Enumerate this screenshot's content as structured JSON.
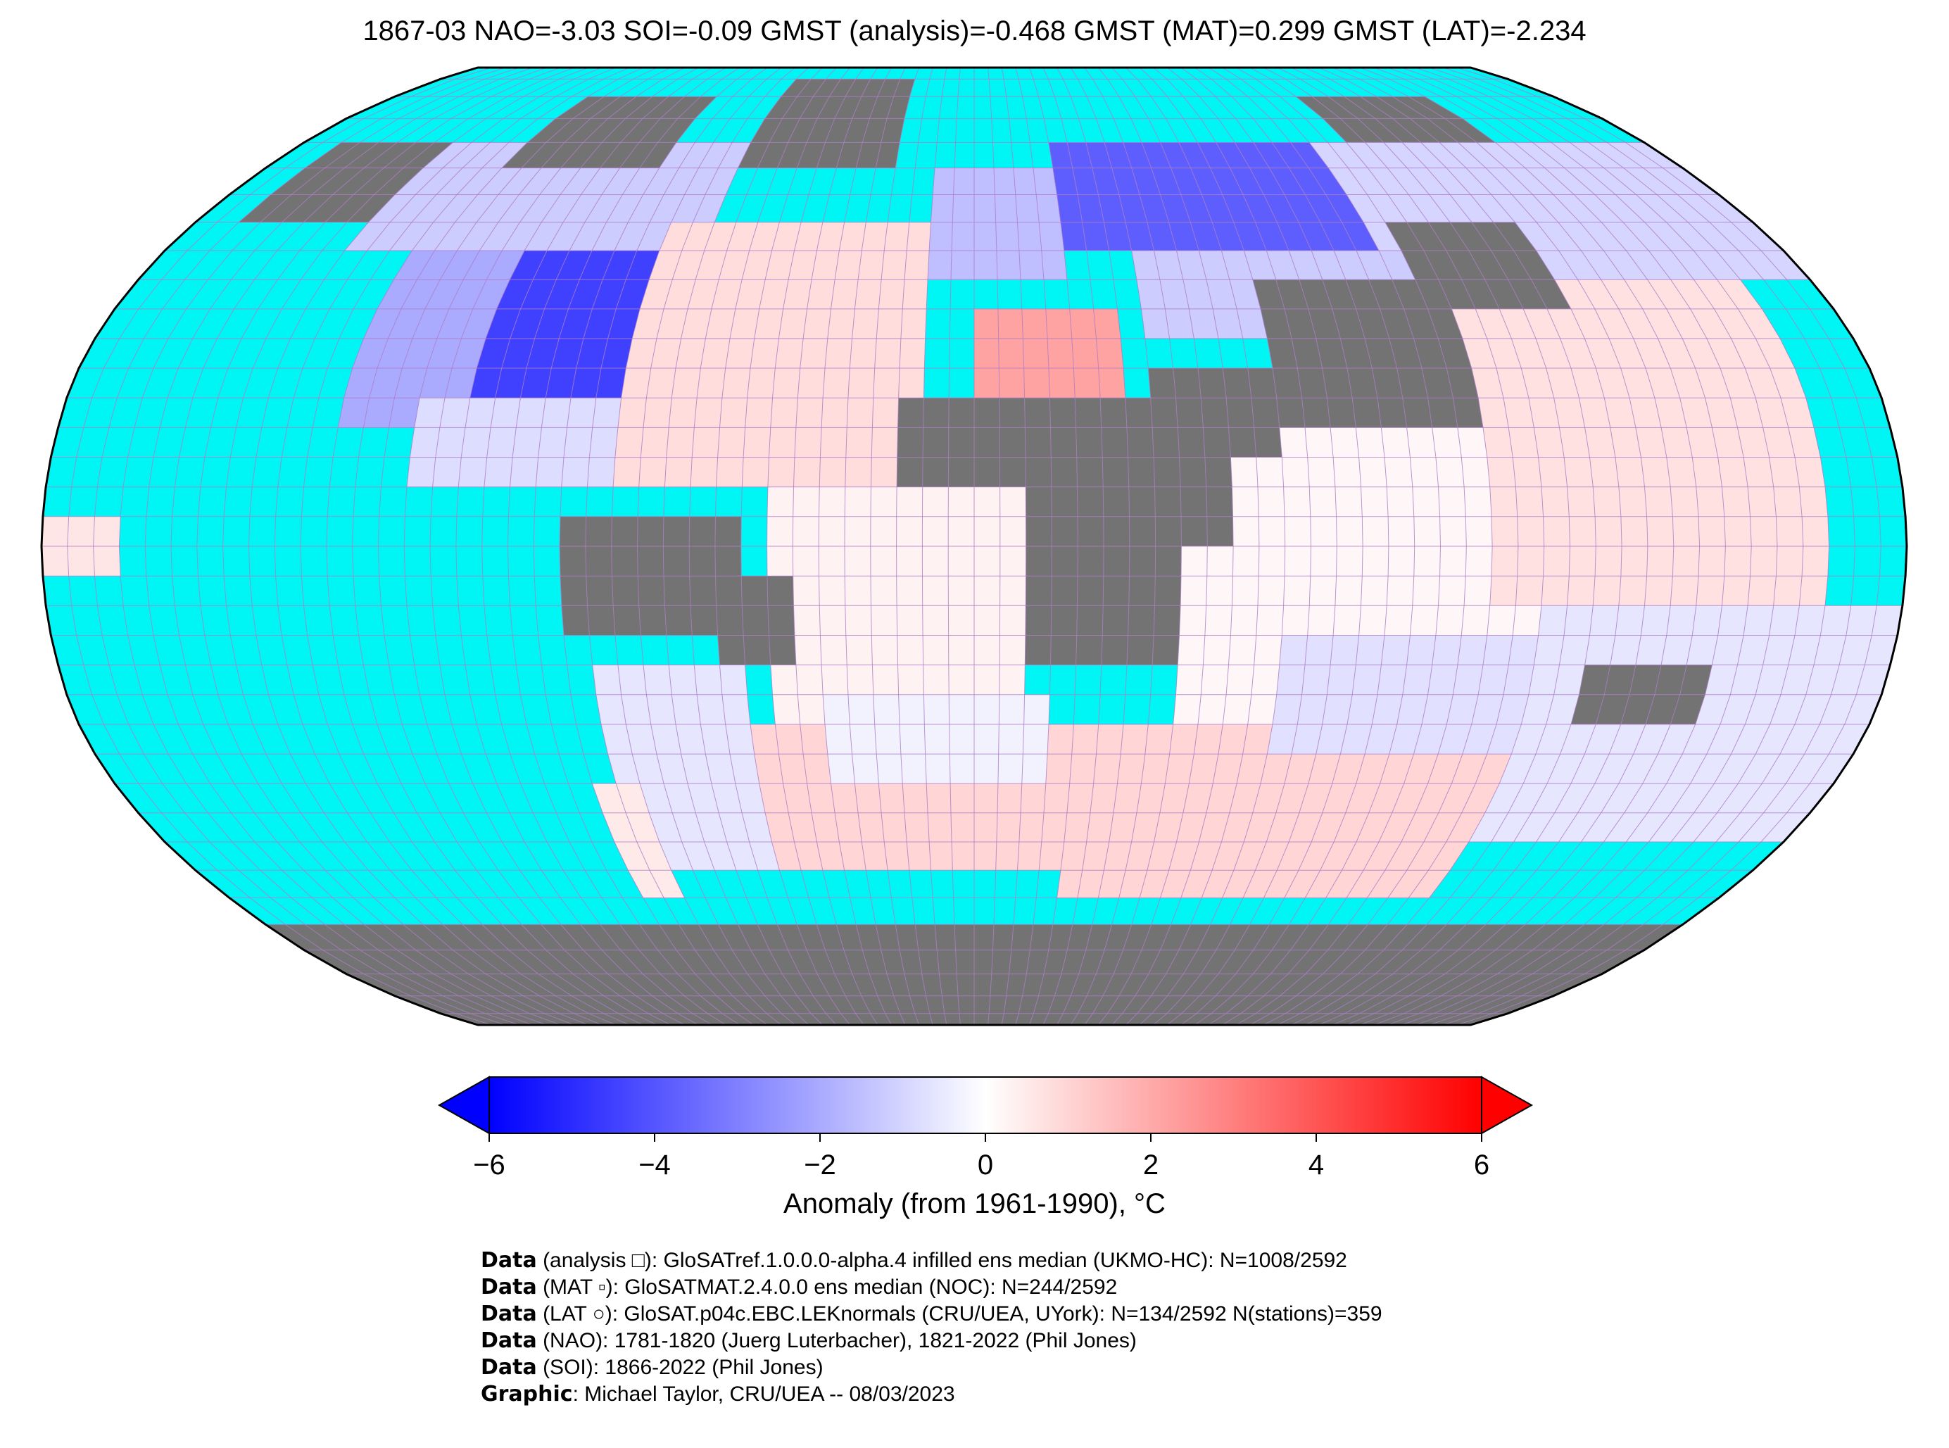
{
  "title": "1867-03 NAO=-3.03 SOI=-0.09 GMST (analysis)=-0.468 GMST (MAT)=0.299 GMST (LAT)=-2.234",
  "colors": {
    "ocean_missing": "#00f5f5",
    "land_missing": "#737373",
    "grid_line": "#b07cc6",
    "cold": "#0000ff",
    "neutral": "#ffffff",
    "warm": "#ff0000"
  },
  "colorbar": {
    "min": -6,
    "max": 6,
    "ticks": [
      "−6",
      "−4",
      "−2",
      "0",
      "2",
      "4",
      "6"
    ],
    "tick_values": [
      -6,
      -4,
      -2,
      0,
      2,
      4,
      6
    ],
    "extend": "both",
    "label": "Anomaly (from 1961-1990), °C"
  },
  "credits": [
    {
      "bold": "Data",
      "text": " (analysis □): GloSATref.1.0.0.0-alpha.4 infilled ens median (UKMO-HC): N=1008/2592"
    },
    {
      "bold": "Data",
      "text": " (MAT ▫): GloSATMAT.2.4.0.0 ens median (NOC): N=244/2592"
    },
    {
      "bold": "Data",
      "text": " (LAT ○): GloSAT.p04c.EBC.LEKnormals (CRU/UEA, UYork): N=134/2592 N(stations)=359"
    },
    {
      "bold": "Data",
      "text": " (NAO): 1781-1820 (Juerg Luterbacher), 1821-2022 (Phil Jones)"
    },
    {
      "bold": "Data",
      "text": " (SOI): 1866-2022 (Phil Jones)"
    },
    {
      "bold": "Graphic",
      "text": ": Michael Taylor, CRU/UEA -- 08/03/2023"
    }
  ],
  "map_data": {
    "projection": "Robinson",
    "grid_resolution_deg": 5,
    "anomaly_regions": [
      {
        "region": "north-america-interior",
        "lon": [
          -100,
          -65
        ],
        "lat": [
          25,
          50
        ],
        "anomaly": -4.5
      },
      {
        "region": "north-america-west",
        "lon": [
          -125,
          -100
        ],
        "lat": [
          20,
          55
        ],
        "anomaly": -2.0
      },
      {
        "region": "canada-north",
        "lon": [
          -140,
          -60
        ],
        "lat": [
          50,
          72
        ],
        "anomaly": -1.2
      },
      {
        "region": "gulf-caribbean",
        "lon": [
          -110,
          -60
        ],
        "lat": [
          10,
          25
        ],
        "anomaly": -0.8
      },
      {
        "region": "eurasia-north",
        "lon": [
          20,
          90
        ],
        "lat": [
          48,
          72
        ],
        "anomaly": -3.8
      },
      {
        "region": "europe-west",
        "lon": [
          -10,
          20
        ],
        "lat": [
          45,
          65
        ],
        "anomaly": -1.5
      },
      {
        "region": "siberia-east",
        "lon": [
          90,
          180
        ],
        "lat": [
          45,
          72
        ],
        "anomaly": -1.0
      },
      {
        "region": "central-asia",
        "lon": [
          35,
          110
        ],
        "lat": [
          35,
          48
        ],
        "anomaly": -1.2
      },
      {
        "region": "north-africa-med",
        "lon": [
          0,
          30
        ],
        "lat": [
          25,
          40
        ],
        "anomaly": 2.2
      },
      {
        "region": "north-atlantic",
        "lon": [
          -70,
          -10
        ],
        "lat": [
          10,
          55
        ],
        "anomaly": 0.8
      },
      {
        "region": "tropical-atlantic",
        "lon": [
          -40,
          10
        ],
        "lat": [
          -30,
          10
        ],
        "anomaly": 0.3
      },
      {
        "region": "south-atlantic",
        "lon": [
          -55,
          20
        ],
        "lat": [
          -55,
          -30
        ],
        "anomaly": 1.0
      },
      {
        "region": "south-atlantic-central",
        "lon": [
          -30,
          15
        ],
        "lat": [
          -40,
          -25
        ],
        "anomaly": -0.3
      },
      {
        "region": "indian-ocean-south",
        "lon": [
          20,
          110
        ],
        "lat": [
          -60,
          -30
        ],
        "anomaly": 1.0
      },
      {
        "region": "indian-ocean",
        "lon": [
          40,
          110
        ],
        "lat": [
          -30,
          25
        ],
        "anomaly": 0.2
      },
      {
        "region": "indian-ocean-sw",
        "lon": [
          60,
          110
        ],
        "lat": [
          -35,
          -15
        ],
        "anomaly": -0.7
      },
      {
        "region": "west-pacific",
        "lon": [
          100,
          165
        ],
        "lat": [
          -10,
          45
        ],
        "anomaly": 0.7
      },
      {
        "region": "southwest-pacific",
        "lon": [
          110,
          180
        ],
        "lat": [
          -50,
          -10
        ],
        "anomaly": -0.6
      },
      {
        "region": "south-america-south",
        "lon": [
          -75,
          -45
        ],
        "lat": [
          -55,
          -20
        ],
        "anomaly": -0.6
      },
      {
        "region": "patagonia-pacific",
        "lon": [
          -80,
          -70
        ],
        "lat": [
          -60,
          -40
        ],
        "anomaly": 0.5
      },
      {
        "region": "central-pacific-west",
        "lon": [
          -180,
          -165
        ],
        "lat": [
          -5,
          5
        ],
        "anomaly": 0.6
      }
    ],
    "land_missing_regions": [
      {
        "region": "alaska",
        "lon": [
          -170,
          -140
        ],
        "lat": [
          55,
          72
        ]
      },
      {
        "region": "greenland",
        "lon": [
          -60,
          -20
        ],
        "lat": [
          65,
          83
        ]
      },
      {
        "region": "canada-arctic",
        "lon": [
          -120,
          -80
        ],
        "lat": [
          65,
          80
        ]
      },
      {
        "region": "north-africa-sahara",
        "lon": [
          -15,
          40
        ],
        "lat": [
          10,
          25
        ]
      },
      {
        "region": "central-africa",
        "lon": [
          10,
          40
        ],
        "lat": [
          -20,
          10
        ]
      },
      {
        "region": "horn-of-africa",
        "lon": [
          30,
          50
        ],
        "lat": [
          0,
          15
        ]
      },
      {
        "region": "arabia",
        "lon": [
          35,
          60
        ],
        "lat": [
          15,
          30
        ]
      },
      {
        "region": "tibet-india-north",
        "lon": [
          60,
          100
        ],
        "lat": [
          20,
          45
        ]
      },
      {
        "region": "amazon",
        "lon": [
          -80,
          -45
        ],
        "lat": [
          -15,
          5
        ]
      },
      {
        "region": "brazil-northeast",
        "lon": [
          -50,
          -35
        ],
        "lat": [
          -20,
          -5
        ]
      },
      {
        "region": "australia-interior",
        "lon": [
          120,
          145
        ],
        "lat": [
          -30,
          -20
        ]
      },
      {
        "region": "mongolia",
        "lon": [
          95,
          125
        ],
        "lat": [
          40,
          55
        ]
      },
      {
        "region": "arctic-siberia",
        "lon": [
          100,
          140
        ],
        "lat": [
          72,
          80
        ]
      },
      {
        "region": "antarctica",
        "lon": [
          -180,
          180
        ],
        "lat": [
          -90,
          -65
        ]
      }
    ]
  }
}
